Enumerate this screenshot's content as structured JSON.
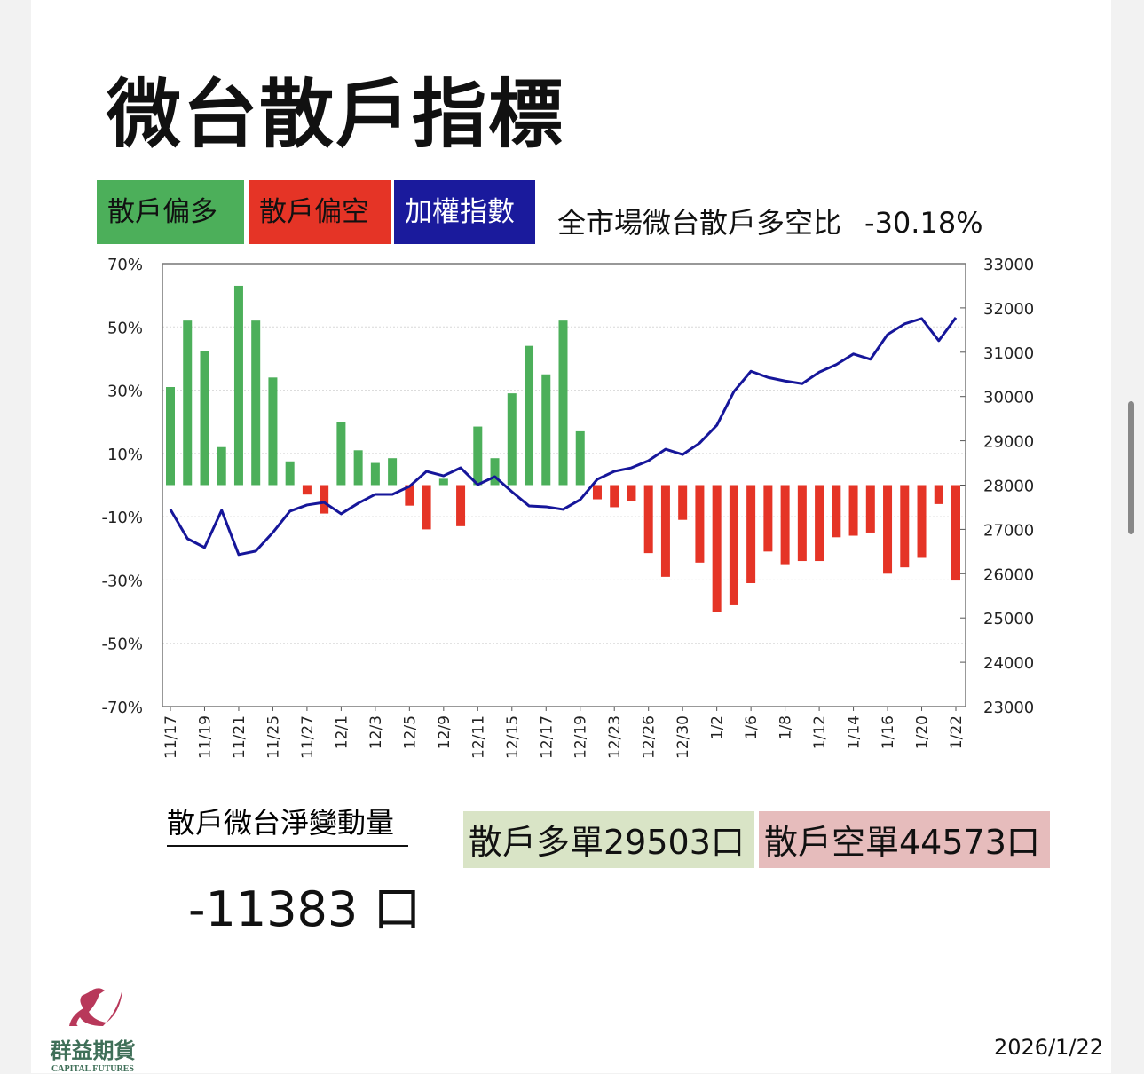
{
  "title": "微台散戶指標",
  "legend": [
    {
      "label": "散戶偏多",
      "color": "#4caf5a",
      "text_color": "#111"
    },
    {
      "label": "散戶偏空",
      "color": "#e53426",
      "text_color": "#111"
    },
    {
      "label": "加權指數",
      "color": "#1a1a9c",
      "text_color": "#fff"
    }
  ],
  "ratio": {
    "label": "全市場微台散戶多空比",
    "value": "-30.18%"
  },
  "chart_data": {
    "type": "bar+line",
    "x_labels": [
      "11/17",
      "11/19",
      "11/21",
      "11/25",
      "11/27",
      "12/1",
      "12/3",
      "12/5",
      "12/9",
      "12/11",
      "12/15",
      "12/17",
      "12/19",
      "12/23",
      "12/26",
      "12/30",
      "1/2",
      "1/6",
      "1/8",
      "1/12",
      "1/14",
      "1/16",
      "1/20",
      "1/22"
    ],
    "left_axis": {
      "ylim": [
        -70,
        70
      ],
      "ticks": [
        "70%",
        "50%",
        "30%",
        "10%",
        "-10%",
        "-30%",
        "-50%",
        "-70%"
      ]
    },
    "right_axis": {
      "ylim": [
        23000,
        33000
      ],
      "ticks": [
        "33000",
        "32000",
        "31000",
        "30000",
        "29000",
        "28000",
        "27000",
        "26000",
        "25000",
        "24000",
        "23000"
      ]
    },
    "series": [
      {
        "name": "散戶多空比(%)",
        "type": "bar",
        "positive_color": "#4caf5a",
        "negative_color": "#e53426",
        "values": [
          31,
          52,
          42.5,
          12,
          63,
          52,
          34,
          7.5,
          -3,
          -9,
          20,
          11,
          7,
          8.5,
          -6.5,
          -14,
          2,
          -13,
          18.5,
          8.5,
          29,
          44,
          35,
          52,
          17,
          -4.5,
          -7,
          -5,
          -21.5,
          -29,
          -11,
          -24.5,
          -40,
          -38,
          -31,
          -21,
          -25,
          -24,
          -24,
          -16.5,
          -16,
          -15,
          -28,
          -26,
          -23,
          -6,
          -30.18
        ]
      },
      {
        "name": "加權指數",
        "type": "line",
        "color": "#16169a",
        "values": [
          27450,
          26790,
          26590,
          27430,
          26430,
          26510,
          26930,
          27410,
          27550,
          27610,
          27350,
          27590,
          27790,
          27790,
          27970,
          28310,
          28210,
          28390,
          28010,
          28190,
          27850,
          27530,
          27510,
          27450,
          27670,
          28130,
          28310,
          28390,
          28550,
          28810,
          28690,
          28950,
          29350,
          30110,
          30570,
          30430,
          30350,
          30290,
          30550,
          30720,
          30960,
          30840,
          31400,
          31640,
          31760,
          31260,
          31780
        ]
      }
    ]
  },
  "net": {
    "label": "散戶微台淨變動量",
    "value": "-11383 口"
  },
  "long_orders": {
    "text": "散戶多單29503口",
    "bg": "#d9e4c6"
  },
  "short_orders": {
    "text": "散戶空單44573口",
    "bg": "#e6bcbc"
  },
  "logo": {
    "name": "群益期貨",
    "sub": "CAPITAL FUTURES"
  },
  "date": "2026/1/22"
}
